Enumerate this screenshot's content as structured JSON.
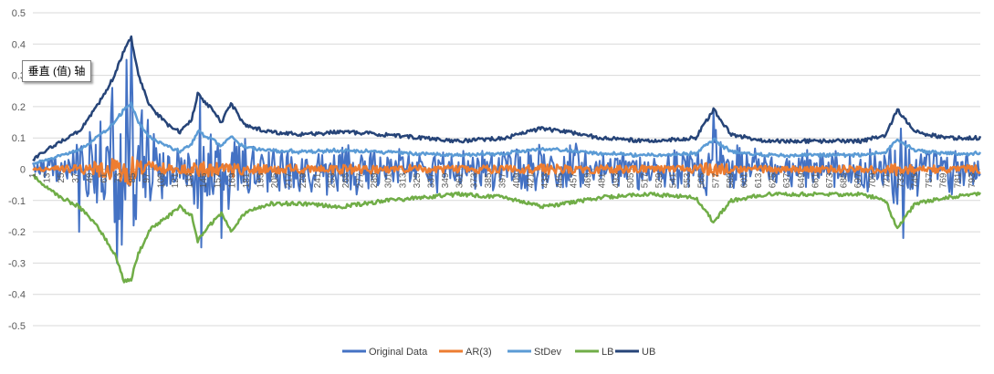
{
  "chart_data": {
    "type": "line",
    "ylim": [
      -0.5,
      0.5
    ],
    "yticks": [
      "0.5",
      "0.4",
      "0.3",
      "0.2",
      "0.1",
      "0",
      "-0.1",
      "-0.2",
      "-0.3",
      "-0.4",
      "-0.5"
    ],
    "ytick_values": [
      0.5,
      0.4,
      0.3,
      0.2,
      0.1,
      0,
      -0.1,
      -0.2,
      -0.3,
      -0.4,
      -0.5
    ],
    "grid": true,
    "legend_position": "bottom",
    "x_count": 800,
    "categories": [
      "1",
      "13",
      "25",
      "37",
      "49",
      "61",
      "73",
      "85",
      "97",
      "109",
      "121",
      "133",
      "145",
      "157",
      "169",
      "181",
      "193",
      "205",
      "217",
      "229",
      "241",
      "253",
      "265",
      "277",
      "289",
      "301",
      "313",
      "325",
      "337",
      "349",
      "361",
      "373",
      "385",
      "397",
      "409",
      "421",
      "433",
      "445",
      "457",
      "469",
      "481",
      "493",
      "505",
      "517",
      "529",
      "541",
      "553",
      "565",
      "577",
      "589",
      "601",
      "613",
      "625",
      "637",
      "649",
      "661",
      "673",
      "685",
      "697",
      "709",
      "721",
      "733",
      "745",
      "757",
      "769",
      "781",
      "793"
    ],
    "series": [
      {
        "name": "Original Data",
        "color": "#4472C4"
      },
      {
        "name": "AR(3)",
        "color": "#ED7D31"
      },
      {
        "name": "StDev",
        "color": "#5B9BD5"
      },
      {
        "name": "LB",
        "color": "#70AD47"
      },
      {
        "name": "UB",
        "color": "#264478"
      }
    ],
    "ub_profile": [
      [
        1,
        0.03
      ],
      [
        20,
        0.08
      ],
      [
        40,
        0.12
      ],
      [
        55,
        0.2
      ],
      [
        70,
        0.3
      ],
      [
        78,
        0.38
      ],
      [
        84,
        0.42
      ],
      [
        90,
        0.3
      ],
      [
        100,
        0.2
      ],
      [
        115,
        0.14
      ],
      [
        125,
        0.12
      ],
      [
        135,
        0.16
      ],
      [
        140,
        0.24
      ],
      [
        150,
        0.2
      ],
      [
        160,
        0.15
      ],
      [
        168,
        0.21
      ],
      [
        180,
        0.14
      ],
      [
        200,
        0.12
      ],
      [
        230,
        0.11
      ],
      [
        260,
        0.12
      ],
      [
        300,
        0.11
      ],
      [
        330,
        0.1
      ],
      [
        360,
        0.09
      ],
      [
        400,
        0.1
      ],
      [
        430,
        0.13
      ],
      [
        450,
        0.12
      ],
      [
        480,
        0.1
      ],
      [
        520,
        0.09
      ],
      [
        560,
        0.1
      ],
      [
        575,
        0.19
      ],
      [
        590,
        0.11
      ],
      [
        620,
        0.09
      ],
      [
        660,
        0.09
      ],
      [
        700,
        0.09
      ],
      [
        720,
        0.11
      ],
      [
        730,
        0.19
      ],
      [
        745,
        0.12
      ],
      [
        770,
        0.1
      ],
      [
        800,
        0.1
      ]
    ],
    "lb_profile": [
      [
        1,
        -0.02
      ],
      [
        20,
        -0.08
      ],
      [
        40,
        -0.12
      ],
      [
        55,
        -0.18
      ],
      [
        70,
        -0.27
      ],
      [
        78,
        -0.36
      ],
      [
        84,
        -0.35
      ],
      [
        90,
        -0.27
      ],
      [
        100,
        -0.19
      ],
      [
        115,
        -0.15
      ],
      [
        125,
        -0.12
      ],
      [
        135,
        -0.15
      ],
      [
        140,
        -0.23
      ],
      [
        150,
        -0.18
      ],
      [
        160,
        -0.14
      ],
      [
        168,
        -0.2
      ],
      [
        180,
        -0.14
      ],
      [
        200,
        -0.11
      ],
      [
        230,
        -0.11
      ],
      [
        260,
        -0.12
      ],
      [
        300,
        -0.1
      ],
      [
        330,
        -0.09
      ],
      [
        360,
        -0.08
      ],
      [
        400,
        -0.09
      ],
      [
        430,
        -0.12
      ],
      [
        450,
        -0.11
      ],
      [
        480,
        -0.09
      ],
      [
        520,
        -0.08
      ],
      [
        560,
        -0.09
      ],
      [
        575,
        -0.17
      ],
      [
        590,
        -0.1
      ],
      [
        620,
        -0.08
      ],
      [
        660,
        -0.08
      ],
      [
        700,
        -0.08
      ],
      [
        720,
        -0.1
      ],
      [
        730,
        -0.19
      ],
      [
        745,
        -0.11
      ],
      [
        770,
        -0.09
      ],
      [
        800,
        -0.08
      ]
    ],
    "spikes": [
      [
        40,
        -0.2
      ],
      [
        68,
        0.26
      ],
      [
        72,
        -0.3
      ],
      [
        80,
        0.35
      ],
      [
        84,
        0.41
      ],
      [
        86,
        -0.18
      ],
      [
        142,
        0.23
      ],
      [
        143,
        -0.25
      ],
      [
        160,
        -0.22
      ],
      [
        575,
        0.19
      ],
      [
        735,
        -0.22
      ],
      [
        733,
        0.13
      ]
    ]
  },
  "tooltip": {
    "text": "垂直 (值) 轴"
  }
}
